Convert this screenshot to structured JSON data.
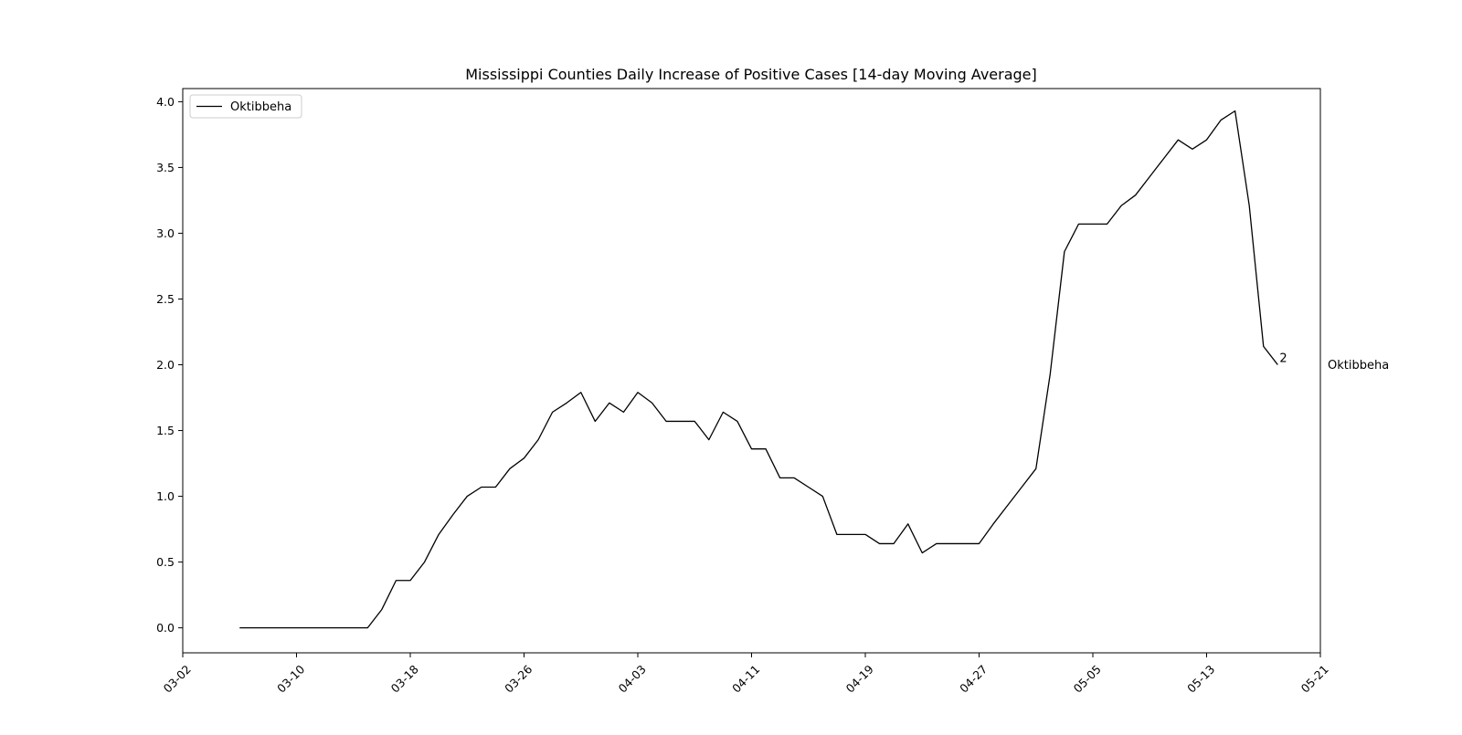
{
  "chart_data": {
    "type": "line",
    "title": "Mississippi Counties Daily Increase of Positive Cases [14-day Moving Average]",
    "xlabel": "",
    "ylabel": "",
    "x_axis_type": "date",
    "year": 2020,
    "xlim": [
      "03-02",
      "05-21"
    ],
    "ylim": [
      -0.19,
      4.1
    ],
    "x_ticks": [
      "03-02",
      "03-10",
      "03-18",
      "03-26",
      "04-03",
      "04-11",
      "04-19",
      "04-27",
      "05-05",
      "05-13",
      "05-21"
    ],
    "y_ticks": [
      "0.0",
      "0.5",
      "1.0",
      "1.5",
      "2.0",
      "2.5",
      "3.0",
      "3.5",
      "4.0"
    ],
    "x_tick_rotation": 45,
    "grid": false,
    "legend": {
      "position": "top-left",
      "entries": [
        "Oktibbeha"
      ]
    },
    "series": [
      {
        "name": "Oktibbeha",
        "color": "#000000",
        "x": [
          "03-06",
          "03-07",
          "03-08",
          "03-09",
          "03-10",
          "03-11",
          "03-12",
          "03-13",
          "03-14",
          "03-15",
          "03-16",
          "03-17",
          "03-18",
          "03-19",
          "03-20",
          "03-21",
          "03-22",
          "03-23",
          "03-24",
          "03-25",
          "03-26",
          "03-27",
          "03-28",
          "03-29",
          "03-30",
          "03-31",
          "04-01",
          "04-02",
          "04-03",
          "04-04",
          "04-05",
          "04-06",
          "04-07",
          "04-08",
          "04-09",
          "04-10",
          "04-11",
          "04-12",
          "04-13",
          "04-14",
          "04-15",
          "04-16",
          "04-17",
          "04-18",
          "04-19",
          "04-20",
          "04-21",
          "04-22",
          "04-23",
          "04-24",
          "04-25",
          "04-26",
          "04-27",
          "04-28",
          "04-29",
          "04-30",
          "05-01",
          "05-02",
          "05-03",
          "05-04",
          "05-05",
          "05-06",
          "05-07",
          "05-08",
          "05-09",
          "05-10",
          "05-11",
          "05-12",
          "05-13",
          "05-14",
          "05-15",
          "05-16",
          "05-17",
          "05-18"
        ],
        "values": [
          0.0,
          0.0,
          0.0,
          0.0,
          0.0,
          0.0,
          0.0,
          0.0,
          0.0,
          0.0,
          0.14,
          0.36,
          0.36,
          0.5,
          0.71,
          0.86,
          1.0,
          1.07,
          1.07,
          1.21,
          1.29,
          1.43,
          1.64,
          1.71,
          1.79,
          1.57,
          1.71,
          1.64,
          1.79,
          1.71,
          1.57,
          1.57,
          1.57,
          1.43,
          1.64,
          1.57,
          1.36,
          1.36,
          1.14,
          1.14,
          1.07,
          1.0,
          0.71,
          0.71,
          0.71,
          0.64,
          0.64,
          0.79,
          0.57,
          0.64,
          0.64,
          0.64,
          0.64,
          0.79,
          0.93,
          1.07,
          1.21,
          1.93,
          2.86,
          3.07,
          3.07,
          3.07,
          3.21,
          3.29,
          3.43,
          3.57,
          3.71,
          3.64,
          3.71,
          3.86,
          3.93,
          3.21,
          2.14,
          2.0
        ]
      }
    ],
    "annotations": [
      {
        "text": "2",
        "x": "05-18",
        "y": 2.0
      },
      {
        "text": "Oktibbeha",
        "x": "05-21",
        "y": 2.0,
        "placement": "outside-right"
      }
    ]
  }
}
